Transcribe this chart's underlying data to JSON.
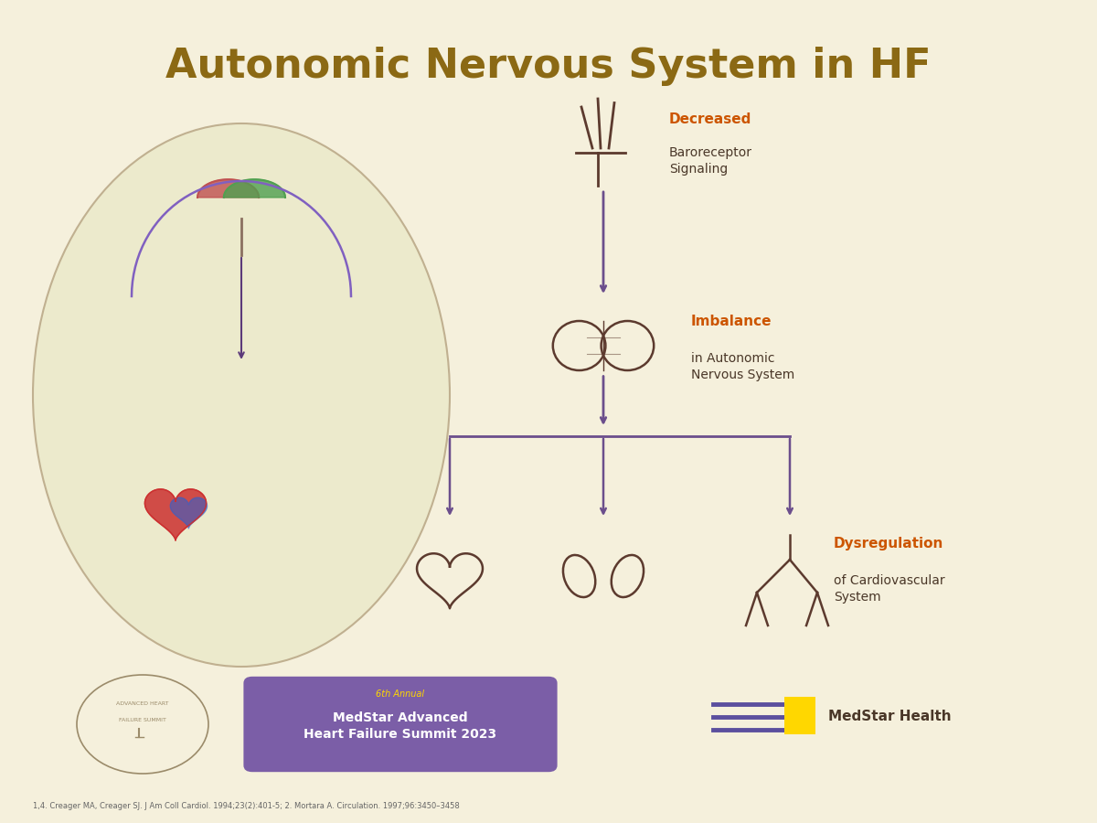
{
  "title": "Autonomic Nervous System in HF",
  "title_color": "#8B6914",
  "title_fontsize": 32,
  "bg_color": "#F5F0DC",
  "slide_bg": "#1a1a2e",
  "label1_bold": "Decreased",
  "label1_rest": "Baroreceptor\nSignaling",
  "label1_color_bold": "#CC5500",
  "label1_color_rest": "#4a3728",
  "label2_bold": "Imbalance",
  "label2_rest": "in Autonomic\nNervous System",
  "label2_color_bold": "#CC5500",
  "label2_color_rest": "#4a3728",
  "label3_bold": "Dysregulation",
  "label3_rest": "of Cardiovascular\nSystem",
  "label3_color_bold": "#CC5500",
  "label3_color_rest": "#4a3728",
  "arrow_color": "#6B4E8C",
  "line_color": "#6B4E8C",
  "organ_color": "#5C3A2E",
  "footer_box_color": "#7B5EA7",
  "footer_text1": "6th Annual",
  "footer_text2": "MedStar Advanced\nHeart Failure Summit 2023",
  "footer_text_color": "#FFFFFF",
  "ref_text": "1,4. Creager MA, Creager SJ. J Am Coll Cardiol. 1994;23(2):401-5; 2. Mortara A. Circulation. 1997;96:3450–3458",
  "ref_color": "#666666",
  "medstar_text": "MedStar Health",
  "medstar_color": "#4a3728"
}
